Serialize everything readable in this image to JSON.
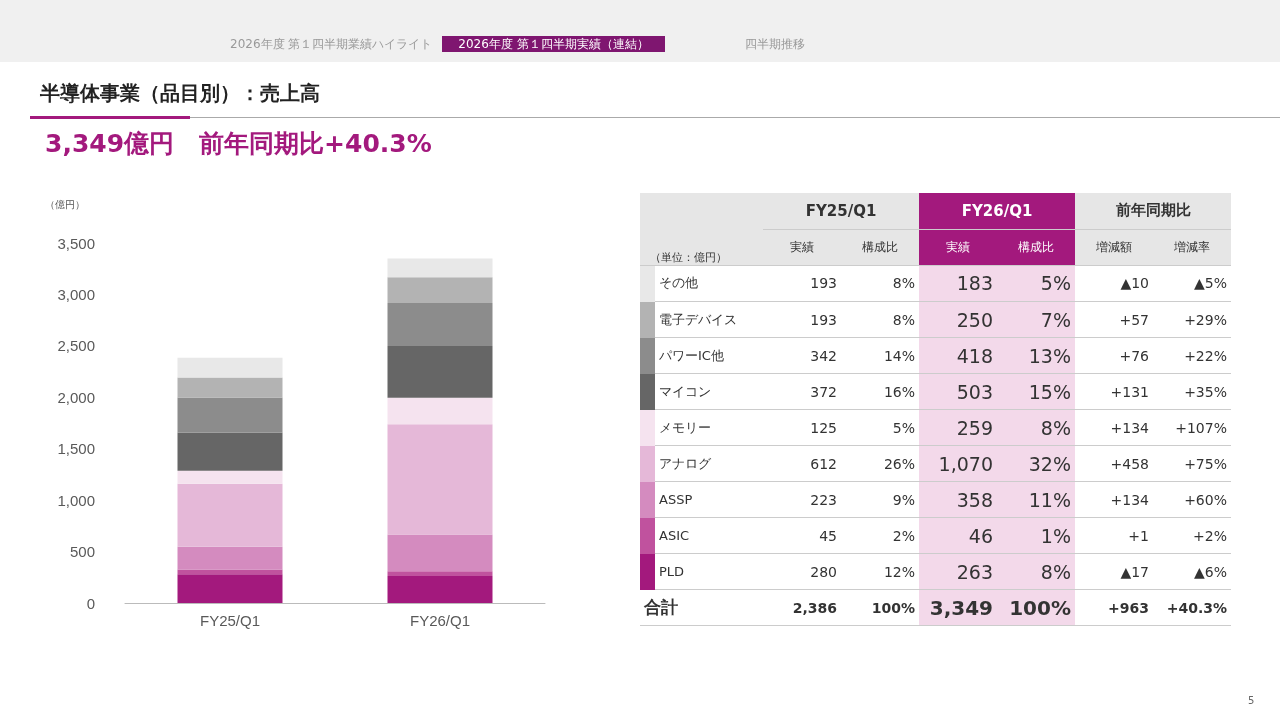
{
  "chart_data": {
    "type": "bar",
    "title": "半導体事業（品目別）：売上高",
    "subtitle": "3,349億円　前年同期比+40.3%",
    "ylabel": "（億円）",
    "categories": [
      "FY25/Q1",
      "FY26/Q1"
    ],
    "series": [
      {
        "name": "PLD",
        "color": "#a3197d",
        "values": [
          280,
          263
        ]
      },
      {
        "name": "ASIC",
        "color": "#c0529e",
        "values": [
          45,
          46
        ]
      },
      {
        "name": "ASSP",
        "color": "#d48bbf",
        "values": [
          223,
          358
        ]
      },
      {
        "name": "アナログ",
        "color": "#e5b8d8",
        "values": [
          612,
          1070
        ]
      },
      {
        "name": "メモリー",
        "color": "#f5e3ef",
        "values": [
          125,
          259
        ]
      },
      {
        "name": "マイコン",
        "color": "#666666",
        "values": [
          372,
          503
        ]
      },
      {
        "name": "パワーIC他",
        "color": "#8c8c8c",
        "values": [
          342,
          418
        ]
      },
      {
        "name": "電子デバイス",
        "color": "#b3b3b3",
        "values": [
          193,
          250
        ]
      },
      {
        "name": "その他",
        "color": "#e8e8e8",
        "values": [
          193,
          183
        ]
      }
    ],
    "stacked": true,
    "ylim": [
      0,
      3500
    ],
    "yticks": [
      0,
      500,
      {
        "value": 1000,
        "label": "1,000"
      },
      {
        "value": 1500,
        "label": "1,500"
      },
      {
        "value": 2000,
        "label": "2,000"
      },
      {
        "value": 2500,
        "label": "2,500"
      },
      {
        "value": 3000,
        "label": "3,000"
      },
      {
        "value": 3500,
        "label": "3,500"
      }
    ],
    "grid": false,
    "legend": "right",
    "annotations": [
      "2026年度 第１四半期業績ハイライト",
      "2026年度 第１四半期実績（連結）",
      "四半期推移",
      "前年同期比",
      "実績",
      "構成比",
      "実績",
      "構成比",
      "増減額",
      "増減率",
      "（単位：億円）",
      "合計",
      "2,386",
      "100%",
      "3,349",
      "100%",
      "+963",
      "+40.3%",
      "193",
      "8%",
      "183",
      "5%",
      "▲10",
      "▲5%",
      "193",
      "8%",
      "250",
      "7%",
      "+57",
      "+29%",
      "342",
      "14%",
      "418",
      "13%",
      "+76",
      "+22%",
      "372",
      "16%",
      "503",
      "15%",
      "+131",
      "+35%",
      "125",
      "5%",
      "259",
      "8%",
      "+134",
      "+107%",
      "612",
      "26%",
      "1,070",
      "32%",
      "+458",
      "+75%",
      "223",
      "9%",
      "358",
      "11%",
      "+134",
      "+60%",
      "45",
      "2%",
      "46",
      "1%",
      "+1",
      "+2%",
      "280",
      "12%",
      "263",
      "8%",
      "▲17",
      "▲6%",
      "5"
    ]
  }
}
